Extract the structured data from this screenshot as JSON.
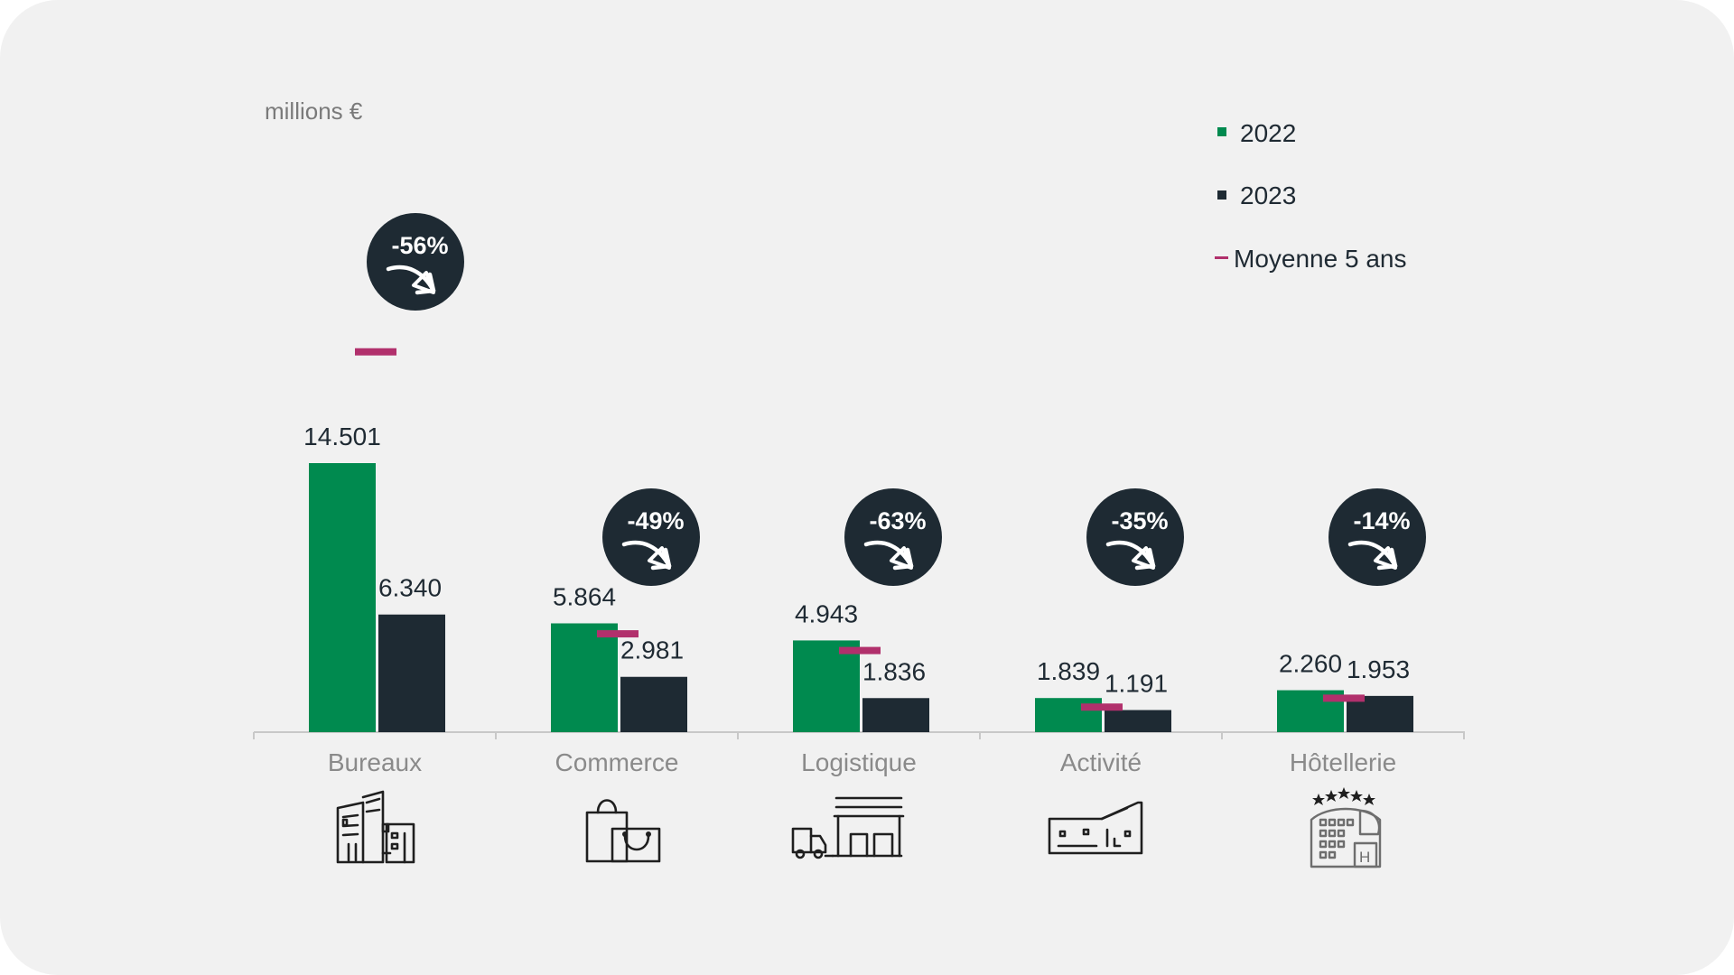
{
  "chart_data": {
    "type": "bar",
    "unit_label": "millions €",
    "categories": [
      "Bureaux",
      "Commerce",
      "Logistique",
      "Activité",
      "Hôtellerie"
    ],
    "series": [
      {
        "name": "2022",
        "values": [
          14501,
          5864,
          4943,
          1839,
          2260
        ],
        "value_labels": [
          "14.501",
          "5.864",
          "4.943",
          "1.839",
          "2.260"
        ]
      },
      {
        "name": "2023",
        "values": [
          6340,
          2981,
          1836,
          1191,
          1953
        ],
        "value_labels": [
          "6.340",
          "2.981",
          "1.836",
          "1.191",
          "1.953"
        ]
      }
    ],
    "average": {
      "name": "Moyenne 5 ans",
      "values": [
        20500,
        5300,
        4400,
        1350,
        1830
      ]
    },
    "changes": [
      "-56%",
      "-49%",
      "-63%",
      "-35%",
      "-14%"
    ],
    "ylim": [
      0,
      24000
    ],
    "grid": false,
    "legend_position": "top-right",
    "colors": {
      "2022": "#008a4f",
      "2023": "#1e2a33",
      "average": "#b1306c",
      "badge": "#1e2a33"
    },
    "icons": [
      "office-buildings-icon",
      "shopping-bags-icon",
      "warehouse-truck-icon",
      "factory-icon",
      "hotel-icon"
    ]
  }
}
